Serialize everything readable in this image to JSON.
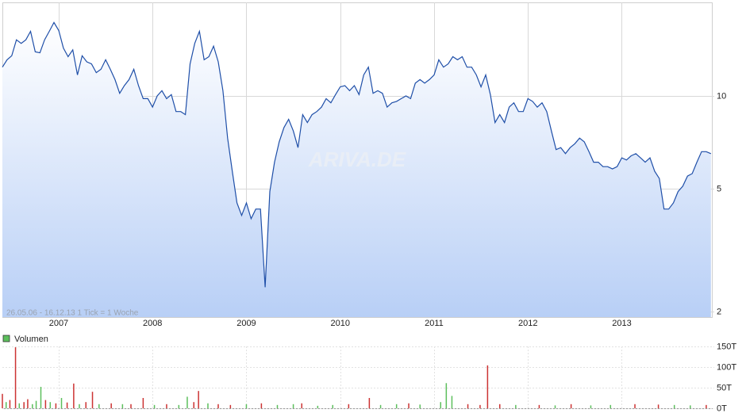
{
  "chart_data": [
    {
      "type": "line",
      "log_scale": true,
      "grid": true,
      "color": "#1f4fa8",
      "area_colors": [
        "#ffffff",
        "#b8cff6"
      ],
      "watermark": "ARIVA.DE",
      "footnote": "26.05.06 - 16.12.13   1 Tick = 1 Woche",
      "xlim": [
        2006.4,
        2013.96
      ],
      "xticks": [
        2007,
        2008,
        2009,
        2010,
        2011,
        2012,
        2013
      ],
      "ylim": [
        1.92,
        20.1
      ],
      "yticks": [
        2,
        5,
        10
      ],
      "x": [
        2006.4,
        2006.45,
        2006.5,
        2006.55,
        2006.6,
        2006.65,
        2006.7,
        2006.75,
        2006.8,
        2006.85,
        2006.9,
        2006.95,
        2007.0,
        2007.05,
        2007.1,
        2007.15,
        2007.2,
        2007.25,
        2007.3,
        2007.35,
        2007.4,
        2007.45,
        2007.5,
        2007.55,
        2007.6,
        2007.65,
        2007.7,
        2007.75,
        2007.8,
        2007.85,
        2007.9,
        2007.95,
        2008.0,
        2008.05,
        2008.1,
        2008.15,
        2008.2,
        2008.25,
        2008.3,
        2008.35,
        2008.4,
        2008.45,
        2008.5,
        2008.55,
        2008.6,
        2008.65,
        2008.7,
        2008.75,
        2008.8,
        2008.85,
        2008.9,
        2008.95,
        2009.0,
        2009.05,
        2009.1,
        2009.15,
        2009.2,
        2009.25,
        2009.3,
        2009.35,
        2009.4,
        2009.45,
        2009.5,
        2009.55,
        2009.6,
        2009.65,
        2009.7,
        2009.75,
        2009.8,
        2009.85,
        2009.9,
        2009.95,
        2010.0,
        2010.05,
        2010.1,
        2010.15,
        2010.2,
        2010.25,
        2010.3,
        2010.35,
        2010.4,
        2010.45,
        2010.5,
        2010.55,
        2010.6,
        2010.65,
        2010.7,
        2010.75,
        2010.8,
        2010.85,
        2010.9,
        2010.95,
        2011.0,
        2011.05,
        2011.1,
        2011.15,
        2011.2,
        2011.25,
        2011.3,
        2011.35,
        2011.4,
        2011.45,
        2011.5,
        2011.55,
        2011.6,
        2011.65,
        2011.7,
        2011.75,
        2011.8,
        2011.85,
        2011.9,
        2011.95,
        2012.0,
        2012.05,
        2012.1,
        2012.15,
        2012.2,
        2012.25,
        2012.3,
        2012.35,
        2012.4,
        2012.45,
        2012.5,
        2012.55,
        2012.6,
        2012.65,
        2012.7,
        2012.75,
        2012.8,
        2012.85,
        2012.9,
        2012.95,
        2013.0,
        2013.05,
        2013.1,
        2013.15,
        2013.2,
        2013.25,
        2013.3,
        2013.35,
        2013.4,
        2013.45,
        2013.5,
        2013.55,
        2013.6,
        2013.65,
        2013.7,
        2013.75,
        2013.8,
        2013.85,
        2013.9,
        2013.95
      ],
      "values": [
        12.4,
        13.1,
        13.5,
        15.2,
        14.8,
        15.2,
        16.2,
        13.9,
        13.8,
        15.2,
        16.2,
        17.3,
        16.3,
        14.3,
        13.4,
        14.1,
        11.7,
        13.5,
        12.9,
        12.7,
        11.9,
        12.2,
        13.1,
        12.2,
        11.3,
        10.2,
        10.8,
        11.3,
        12.2,
        10.8,
        9.8,
        9.8,
        9.2,
        10.0,
        10.4,
        9.8,
        10.1,
        8.9,
        8.9,
        8.7,
        12.7,
        14.8,
        16.2,
        13.1,
        13.4,
        14.5,
        12.9,
        10.4,
        7.3,
        5.7,
        4.5,
        4.1,
        4.5,
        4.0,
        4.3,
        4.3,
        2.4,
        4.9,
        6.1,
        7.1,
        7.9,
        8.4,
        7.7,
        6.8,
        8.7,
        8.2,
        8.7,
        8.9,
        9.2,
        9.8,
        9.5,
        10.1,
        10.7,
        10.8,
        10.4,
        10.8,
        10.1,
        11.7,
        12.4,
        10.2,
        10.4,
        10.2,
        9.2,
        9.5,
        9.6,
        9.8,
        10.0,
        9.8,
        11.0,
        11.3,
        11.0,
        11.3,
        11.7,
        13.1,
        12.4,
        12.7,
        13.4,
        13.1,
        13.4,
        12.4,
        12.4,
        11.7,
        10.7,
        11.7,
        10.1,
        8.2,
        8.7,
        8.2,
        9.2,
        9.5,
        8.9,
        8.9,
        9.8,
        9.6,
        9.2,
        9.5,
        8.9,
        7.7,
        6.7,
        6.8,
        6.5,
        6.8,
        7.0,
        7.3,
        7.1,
        6.6,
        6.1,
        6.1,
        5.9,
        5.9,
        5.8,
        5.9,
        6.3,
        6.2,
        6.4,
        6.5,
        6.3,
        6.1,
        6.3,
        5.7,
        5.4,
        4.3,
        4.3,
        4.5,
        4.9,
        5.1,
        5.5,
        5.6,
        6.1,
        6.6,
        6.6,
        6.5
      ]
    },
    {
      "type": "bar",
      "grid": true,
      "series": [
        {
          "name": "Volumen",
          "color": "#5cbf5c",
          "x": [
            2006.4,
            2006.44,
            2006.48,
            2006.54,
            2006.58,
            2006.63,
            2006.67,
            2006.72,
            2006.76,
            2006.81,
            2006.86,
            2006.91,
            2006.97,
            2007.03,
            2007.09,
            2007.16,
            2007.22,
            2007.29,
            2007.36,
            2007.43,
            2007.56,
            2007.68,
            2007.77,
            2007.9,
            2008.02,
            2008.15,
            2008.28,
            2008.37,
            2008.44,
            2008.49,
            2008.59,
            2008.7,
            2008.83,
            2009.0,
            2009.16,
            2009.33,
            2009.5,
            2009.59,
            2009.76,
            2009.92,
            2010.09,
            2010.31,
            2010.43,
            2010.6,
            2010.73,
            2010.85,
            2011.07,
            2011.13,
            2011.19,
            2011.36,
            2011.49,
            2011.57,
            2011.7,
            2011.87,
            2012.12,
            2012.29,
            2012.46,
            2012.67,
            2012.88,
            2013.14,
            2013.39,
            2013.56,
            2013.73,
            2013.9
          ],
          "values": [
            35000,
            15000,
            20000,
            148000,
            12000,
            15000,
            22000,
            10000,
            18000,
            52000,
            20000,
            15000,
            12000,
            25000,
            14000,
            60000,
            10000,
            15000,
            40000,
            10000,
            12000,
            10000,
            10000,
            25000,
            8000,
            10000,
            8000,
            28000,
            15000,
            42000,
            12000,
            10000,
            8000,
            10000,
            12000,
            8000,
            10000,
            12000,
            6000,
            8000,
            10000,
            25000,
            8000,
            10000,
            12000,
            9000,
            15000,
            61000,
            30000,
            10000,
            8000,
            104000,
            10000,
            8000,
            8000,
            7000,
            10000,
            7000,
            8000,
            10000,
            9000,
            8000,
            7000,
            8000
          ],
          "bar_colors": [
            "#cc3333",
            "#5cbf5c",
            "#cc3333",
            "#cc3333",
            "#5cbf5c",
            "#cc3333",
            "#cc3333",
            "#5cbf5c",
            "#5cbf5c",
            "#5cbf5c",
            "#cc3333",
            "#5cbf5c",
            "#cc3333",
            "#5cbf5c",
            "#cc3333",
            "#cc3333",
            "#5cbf5c",
            "#cc3333",
            "#cc3333",
            "#5cbf5c",
            "#cc3333",
            "#5cbf5c",
            "#cc3333",
            "#cc3333",
            "#5cbf5c",
            "#cc3333",
            "#5cbf5c",
            "#5cbf5c",
            "#cc3333",
            "#cc3333",
            "#5cbf5c",
            "#cc3333",
            "#cc3333",
            "#5cbf5c",
            "#cc3333",
            "#5cbf5c",
            "#5cbf5c",
            "#cc3333",
            "#5cbf5c",
            "#5cbf5c",
            "#cc3333",
            "#cc3333",
            "#5cbf5c",
            "#5cbf5c",
            "#cc3333",
            "#5cbf5c",
            "#5cbf5c",
            "#5cbf5c",
            "#5cbf5c",
            "#cc3333",
            "#cc3333",
            "#cc3333",
            "#cc3333",
            "#5cbf5c",
            "#cc3333",
            "#5cbf5c",
            "#cc3333",
            "#5cbf5c",
            "#5cbf5c",
            "#cc3333",
            "#cc3333",
            "#5cbf5c",
            "#5cbf5c",
            "#cc3333"
          ]
        }
      ],
      "ylim": [
        0,
        150000
      ],
      "yticks": [
        {
          "value": 0,
          "label": "0T"
        },
        {
          "value": 50000,
          "label": "50T"
        },
        {
          "value": 100000,
          "label": "100T"
        },
        {
          "value": 150000,
          "label": "150T"
        }
      ]
    }
  ]
}
